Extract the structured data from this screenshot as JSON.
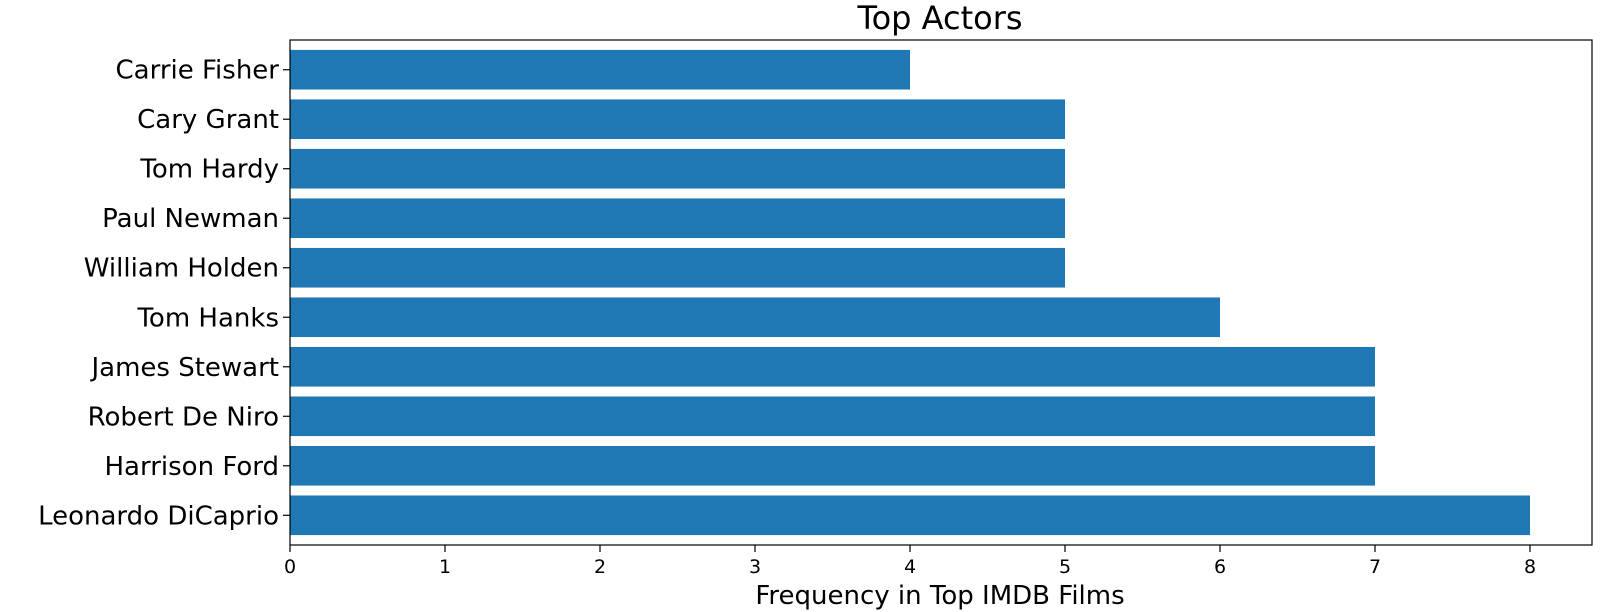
{
  "chart_data": {
    "type": "bar",
    "orientation": "horizontal",
    "title": "Top Actors",
    "xlabel": "Frequency in Top IMDB Films",
    "ylabel": "",
    "categories": [
      "Leonardo DiCaprio",
      "Harrison Ford",
      "Robert De Niro",
      "James Stewart",
      "Tom Hanks",
      "William Holden",
      "Paul Newman",
      "Tom Hardy",
      "Cary Grant",
      "Carrie Fisher"
    ],
    "values": [
      8,
      7,
      7,
      7,
      6,
      5,
      5,
      5,
      5,
      4
    ],
    "xlim": [
      0,
      8.4
    ],
    "xticks": [
      "0",
      "1",
      "2",
      "3",
      "4",
      "5",
      "6",
      "7",
      "8"
    ],
    "grid": false,
    "legend": "none",
    "bar_color": "#1f77b4"
  }
}
